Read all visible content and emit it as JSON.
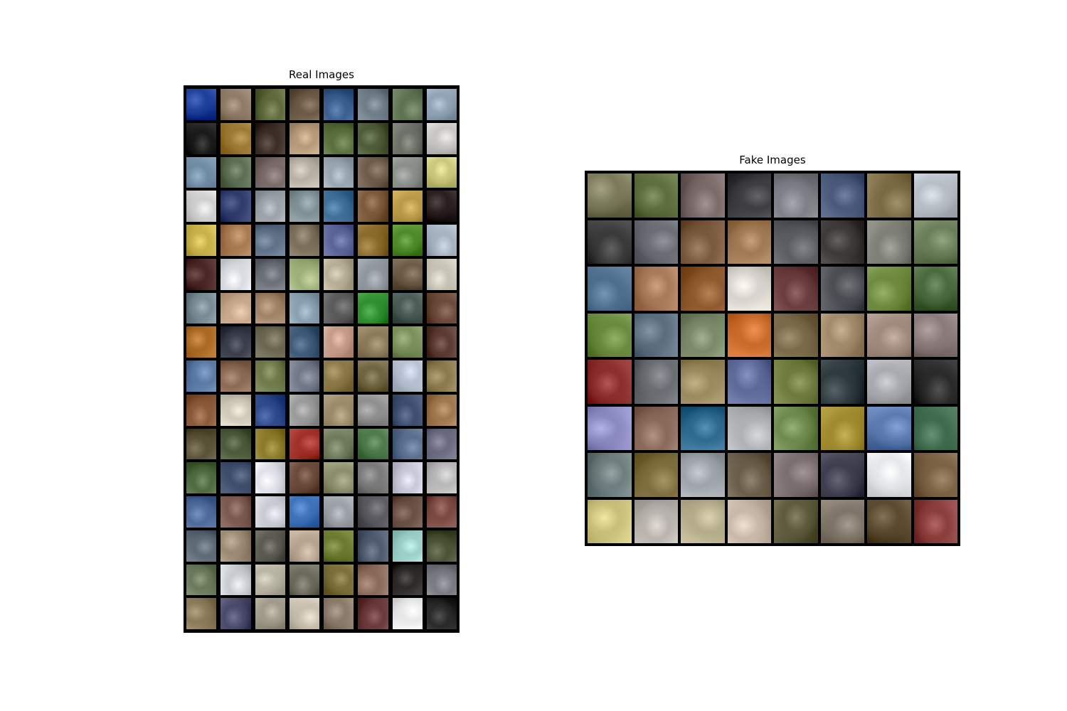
{
  "figure": {
    "real_title": "Real Images",
    "fake_title": "Fake Images"
  },
  "real_grid": {
    "rows": 16,
    "cols": 8,
    "palette": [
      "#1d3f9a",
      "#8f7b66",
      "#5f6a3c",
      "#6b5a45",
      "#3b5f8e",
      "#6f7d88",
      "#5d7251",
      "#8fa3b4",
      "#1a1a1a",
      "#9c7a34",
      "#3b2e26",
      "#b69a7a",
      "#5b6e3d",
      "#4d5b38",
      "#6d7066",
      "#c8c6c2",
      "#6f8ba3",
      "#5e6e52",
      "#7a6a6a",
      "#b8b0a2",
      "#9aa6b2",
      "#6e5b4a",
      "#8a8f8a",
      "#c9c77a",
      "#cfcfcf",
      "#2f3b6b",
      "#9aa3a8",
      "#7f8f96",
      "#3f6e96",
      "#7a5a3a",
      "#b89a48",
      "#2a1d1d",
      "#c6b14a",
      "#a87a52",
      "#5f7288",
      "#7b6e5a",
      "#5a6496",
      "#8a6a2a",
      "#4e8a2a",
      "#a7b2c0",
      "#4a2626",
      "#d8dbe0",
      "#6b6f77",
      "#9db07a",
      "#b7ae96",
      "#8e969e",
      "#6a5a46",
      "#c7c2b6",
      "#7a8a95",
      "#c8a98c",
      "#a08266",
      "#8a9fb0",
      "#5a5a5a",
      "#2f8f2f",
      "#4a5b55",
      "#6b4a3a",
      "#a86a24",
      "#3a3d4a",
      "#6a6650",
      "#3e5a76",
      "#c49a88",
      "#8a7a5a",
      "#7a8f5a",
      "#5a3a32",
      "#5b7aa6",
      "#8a6a54",
      "#6f7a4a",
      "#707888",
      "#8a7848",
      "#6e6440",
      "#b6c0d0",
      "#8a7a4e",
      "#8a5a3a",
      "#cfc9b9",
      "#2f4a8a",
      "#9a9a9a",
      "#9a8a6a",
      "#8f8f8f",
      "#3e4e6e",
      "#a07850",
      "#5a5236",
      "#4a5a3a",
      "#8a7a2a",
      "#a03028",
      "#6e7a5a",
      "#4e7a4a",
      "#5a6e8e",
      "#6a6a80",
      "#4e6a3e",
      "#3e4e6a",
      "#e0e0e8",
      "#6a4a3a",
      "#8a8e6a",
      "#7a7a7a",
      "#c8c8d8",
      "#b8b8b8",
      "#4e6a9a",
      "#7a5a50",
      "#c8ccd2",
      "#3e72b8",
      "#9aa0a6",
      "#5a5a60",
      "#6a5042",
      "#7a4a42",
      "#5e6a76",
      "#9a8a74",
      "#5a5a52",
      "#b5a390",
      "#6a7a2e",
      "#4e5a6e",
      "#9ad0c8",
      "#4a5236",
      "#6a7a5a",
      "#c8ccd0",
      "#b8b4a4",
      "#6a6a5a",
      "#7a6e3a",
      "#8a6a5a",
      "#2e2a2a",
      "#7a7a82",
      "#8a7a5a",
      "#4a4a6a",
      "#a09a8a",
      "#c8beae",
      "#8a7a6a",
      "#6a3a3a",
      "#e8e8ea",
      "#2a2a2a"
    ]
  },
  "fake_grid": {
    "rows": 8,
    "cols": 8,
    "palette": [
      "#7a7a5a",
      "#5e6e3e",
      "#7a6a6a",
      "#3e3e42",
      "#7e8088",
      "#4a5a7a",
      "#7a6a42",
      "#b8bec6",
      "#3a3a3a",
      "#6a6e74",
      "#7a5a3e",
      "#a07a52",
      "#5a5e62",
      "#3e3a3a",
      "#7e8078",
      "#6a7e5a",
      "#4e6e8e",
      "#a87a5a",
      "#8e5a2e",
      "#d8d4cc",
      "#6a3e3e",
      "#4a4e52",
      "#6e8a3e",
      "#4a6a3e",
      "#6a8a3e",
      "#5a6e7e",
      "#7a8a6a",
      "#c86a2a",
      "#7a6a4a",
      "#a08a6a",
      "#a08a7e",
      "#8a7a7a",
      "#8a2e2e",
      "#6a6e72",
      "#9a8a5e",
      "#5e6a9a",
      "#6e7a3e",
      "#2e3a3e",
      "#a8aab0",
      "#2a2a2a",
      "#8a8ac0",
      "#8a6a5a",
      "#2e6a8e",
      "#aeb2b4",
      "#6e8a4e",
      "#a08a2e",
      "#5a7ab0",
      "#3e6a4e",
      "#6e7e7e",
      "#7e6e3e",
      "#9ea4aa",
      "#6a5e4a",
      "#7a6e6e",
      "#3e3e4e",
      "#e4e8ea",
      "#7a6242",
      "#c8c07a",
      "#bab4ae",
      "#b4ac8a",
      "#c8b8a8",
      "#5e5a3e",
      "#7e7468",
      "#5a4a2e",
      "#8a3e3e"
    ]
  }
}
